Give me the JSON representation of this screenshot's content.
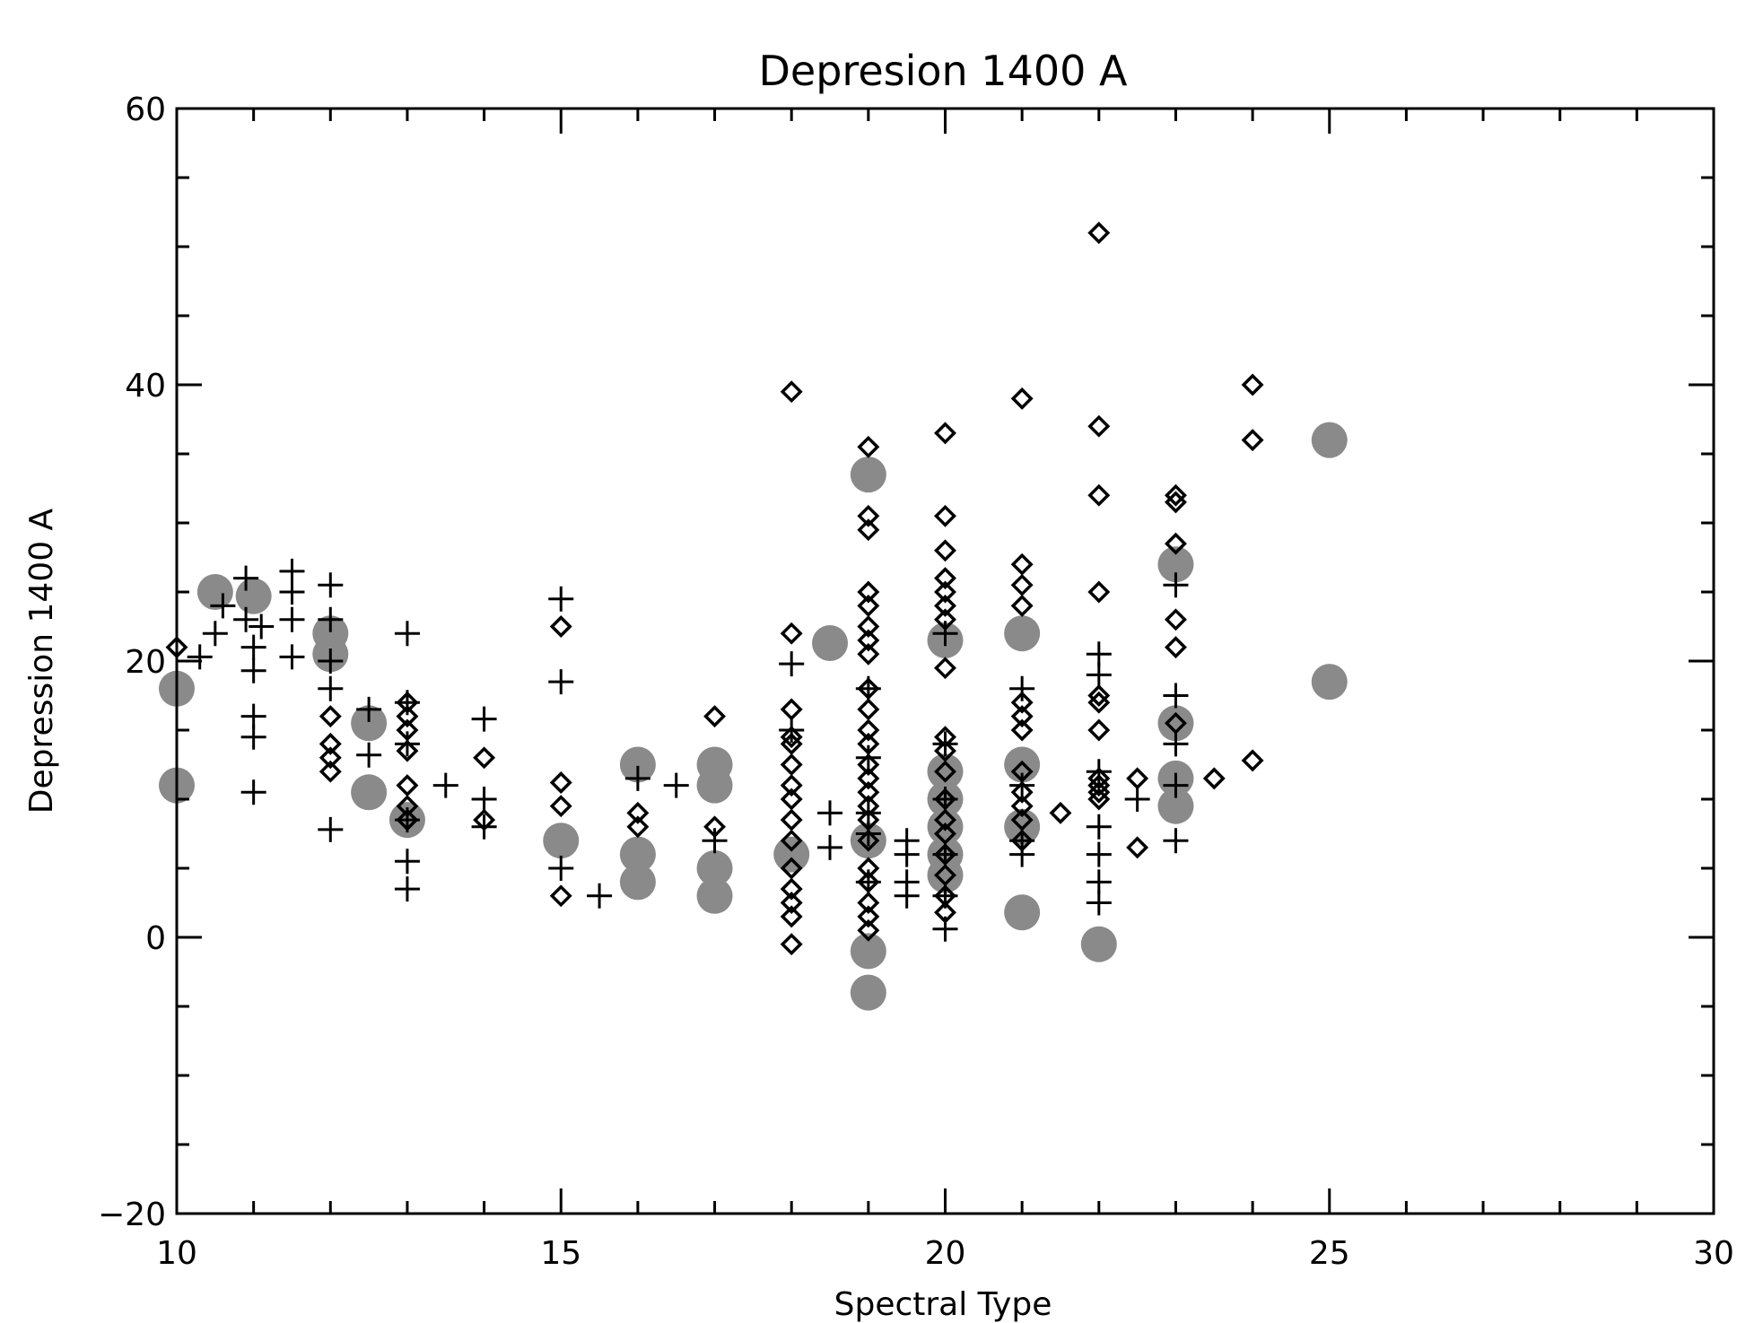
{
  "chart_data": {
    "type": "scatter",
    "title": "Depresion 1400 A",
    "xlabel": "Spectral Type",
    "ylabel": "Depression 1400 A",
    "xlim": [
      10,
      30
    ],
    "ylim": [
      -20,
      60
    ],
    "x_ticks": [
      10,
      15,
      20,
      25,
      30
    ],
    "y_ticks": [
      -20,
      0,
      20,
      40,
      60
    ],
    "x_tick_labels": [
      "10",
      "15",
      "20",
      "25",
      "30"
    ],
    "y_tick_labels": [
      "−20",
      "0",
      "20",
      "40",
      "60"
    ],
    "grid": false,
    "series": [
      {
        "marker": "plus",
        "color": "#000000",
        "points": [
          [
            10.3,
            20.3
          ],
          [
            10.5,
            22
          ],
          [
            10.6,
            24
          ],
          [
            10.9,
            26
          ],
          [
            10.9,
            23
          ],
          [
            11,
            21
          ],
          [
            11,
            19.3
          ],
          [
            11,
            16
          ],
          [
            11,
            14.5
          ],
          [
            11,
            10.5
          ],
          [
            11.1,
            22.5
          ],
          [
            11.5,
            26.5
          ],
          [
            11.5,
            25
          ],
          [
            11.5,
            23
          ],
          [
            11.5,
            20.3
          ],
          [
            12,
            25.5
          ],
          [
            12,
            23
          ],
          [
            12,
            20
          ],
          [
            12,
            18
          ],
          [
            12,
            7.8
          ],
          [
            12.5,
            16.5
          ],
          [
            12.5,
            13.2
          ],
          [
            13,
            22
          ],
          [
            13,
            17
          ],
          [
            13,
            14
          ],
          [
            13,
            8.5
          ],
          [
            13,
            5.5
          ],
          [
            13,
            3.5
          ],
          [
            13.5,
            11
          ],
          [
            14,
            15.8
          ],
          [
            14,
            10
          ],
          [
            14,
            8
          ],
          [
            15,
            24.5
          ],
          [
            15,
            18.5
          ],
          [
            15,
            5
          ],
          [
            15.5,
            3
          ],
          [
            16,
            11.5
          ],
          [
            16.5,
            11
          ],
          [
            17,
            7
          ],
          [
            18,
            19.8
          ],
          [
            18,
            15
          ],
          [
            18.5,
            9
          ],
          [
            18.5,
            6.5
          ],
          [
            19,
            18
          ],
          [
            19,
            13
          ],
          [
            19,
            9
          ],
          [
            19,
            7.5
          ],
          [
            19,
            4
          ],
          [
            19.5,
            7
          ],
          [
            19.5,
            6
          ],
          [
            19.5,
            4
          ],
          [
            19.5,
            3
          ],
          [
            20,
            22
          ],
          [
            20,
            14
          ],
          [
            20,
            10
          ],
          [
            20,
            6
          ],
          [
            20,
            3
          ],
          [
            20,
            0.6
          ],
          [
            21,
            18
          ],
          [
            21,
            11
          ],
          [
            21,
            7
          ],
          [
            21,
            6
          ],
          [
            22,
            20.5
          ],
          [
            22,
            19
          ],
          [
            22,
            12
          ],
          [
            22,
            8
          ],
          [
            22,
            6
          ],
          [
            22,
            4
          ],
          [
            22,
            2.5
          ],
          [
            22.5,
            10
          ],
          [
            23,
            25.5
          ],
          [
            23,
            17.5
          ],
          [
            23,
            14
          ],
          [
            23,
            11
          ],
          [
            23,
            7
          ]
        ]
      },
      {
        "marker": "diamond",
        "color": "#000000",
        "points": [
          [
            10,
            21
          ],
          [
            12,
            16
          ],
          [
            12,
            14
          ],
          [
            12,
            13
          ],
          [
            12,
            12
          ],
          [
            13,
            17
          ],
          [
            13,
            16
          ],
          [
            13,
            15
          ],
          [
            13,
            13.5
          ],
          [
            13,
            11
          ],
          [
            13,
            9.5
          ],
          [
            13,
            8.5
          ],
          [
            14,
            13
          ],
          [
            14,
            8.5
          ],
          [
            15,
            22.5
          ],
          [
            15,
            11.2
          ],
          [
            15,
            9.5
          ],
          [
            15,
            3
          ],
          [
            16,
            9
          ],
          [
            16,
            8
          ],
          [
            17,
            16
          ],
          [
            17,
            8
          ],
          [
            18,
            39.5
          ],
          [
            18,
            22
          ],
          [
            18,
            16.5
          ],
          [
            18,
            14.5
          ],
          [
            18,
            14
          ],
          [
            18,
            12.5
          ],
          [
            18,
            11
          ],
          [
            18,
            10
          ],
          [
            18,
            8.5
          ],
          [
            18,
            7
          ],
          [
            18,
            5
          ],
          [
            18,
            3.5
          ],
          [
            18,
            2.5
          ],
          [
            18,
            1.5
          ],
          [
            18,
            -0.5
          ],
          [
            19,
            35.5
          ],
          [
            19,
            30.5
          ],
          [
            19,
            29.5
          ],
          [
            19,
            25
          ],
          [
            19,
            24
          ],
          [
            19,
            22.5
          ],
          [
            19,
            21.5
          ],
          [
            19,
            20.5
          ],
          [
            19,
            18
          ],
          [
            19,
            16.5
          ],
          [
            19,
            15
          ],
          [
            19,
            14
          ],
          [
            19,
            12.5
          ],
          [
            19,
            11.5
          ],
          [
            19,
            10.5
          ],
          [
            19,
            9.5
          ],
          [
            19,
            8.5
          ],
          [
            19,
            7
          ],
          [
            19,
            5
          ],
          [
            19,
            4
          ],
          [
            19,
            2.5
          ],
          [
            19,
            1.5
          ],
          [
            19,
            0.5
          ],
          [
            20,
            36.5
          ],
          [
            20,
            30.5
          ],
          [
            20,
            28
          ],
          [
            20,
            26
          ],
          [
            20,
            25
          ],
          [
            20,
            24
          ],
          [
            20,
            23
          ],
          [
            20,
            19.5
          ],
          [
            20,
            14.5
          ],
          [
            20,
            13.5
          ],
          [
            20,
            12
          ],
          [
            20,
            10
          ],
          [
            20,
            8.5
          ],
          [
            20,
            7.5
          ],
          [
            20,
            6
          ],
          [
            20,
            4.5
          ],
          [
            20,
            3
          ],
          [
            20,
            1.8
          ],
          [
            21,
            39
          ],
          [
            21,
            27
          ],
          [
            21,
            25.5
          ],
          [
            21,
            24
          ],
          [
            21,
            17
          ],
          [
            21,
            16
          ],
          [
            21,
            15
          ],
          [
            21,
            12
          ],
          [
            21,
            10.5
          ],
          [
            21,
            9.5
          ],
          [
            21,
            8.5
          ],
          [
            21,
            7
          ],
          [
            21.5,
            9
          ],
          [
            22,
            51
          ],
          [
            22,
            37
          ],
          [
            22,
            32
          ],
          [
            22,
            25
          ],
          [
            22,
            17.5
          ],
          [
            22,
            17
          ],
          [
            22,
            15
          ],
          [
            22,
            11.5
          ],
          [
            22,
            11
          ],
          [
            22,
            10.5
          ],
          [
            22,
            10
          ],
          [
            22.5,
            11.5
          ],
          [
            22.5,
            6.5
          ],
          [
            23,
            32
          ],
          [
            23,
            31.5
          ],
          [
            23,
            28.5
          ],
          [
            23,
            23
          ],
          [
            23,
            21
          ],
          [
            23,
            15.5
          ],
          [
            23.5,
            11.5
          ],
          [
            24,
            40
          ],
          [
            24,
            36
          ],
          [
            24,
            12.8
          ]
        ]
      },
      {
        "marker": "filled-circle",
        "color": "#8a8a8a",
        "points": [
          [
            10,
            18
          ],
          [
            10,
            11
          ],
          [
            10.5,
            25
          ],
          [
            11,
            24.7
          ],
          [
            12,
            22
          ],
          [
            12,
            20.5
          ],
          [
            12.5,
            15.5
          ],
          [
            12.5,
            10.5
          ],
          [
            13,
            8.5
          ],
          [
            15,
            7
          ],
          [
            16,
            12.5
          ],
          [
            16,
            6
          ],
          [
            16,
            4
          ],
          [
            17,
            12.5
          ],
          [
            17,
            11
          ],
          [
            17,
            5
          ],
          [
            17,
            3
          ],
          [
            18,
            6
          ],
          [
            18.5,
            21.3
          ],
          [
            19,
            33.5
          ],
          [
            19,
            7
          ],
          [
            19,
            -1
          ],
          [
            19,
            -4
          ],
          [
            20,
            21.5
          ],
          [
            20,
            12
          ],
          [
            20,
            10
          ],
          [
            20,
            8
          ],
          [
            20,
            6
          ],
          [
            20,
            4.5
          ],
          [
            21,
            22
          ],
          [
            21,
            12.5
          ],
          [
            21,
            8
          ],
          [
            21,
            1.8
          ],
          [
            22,
            -0.5
          ],
          [
            23,
            27
          ],
          [
            23,
            15.5
          ],
          [
            23,
            11.5
          ],
          [
            23,
            9.5
          ],
          [
            25,
            36
          ],
          [
            25,
            18.5
          ]
        ]
      }
    ]
  }
}
